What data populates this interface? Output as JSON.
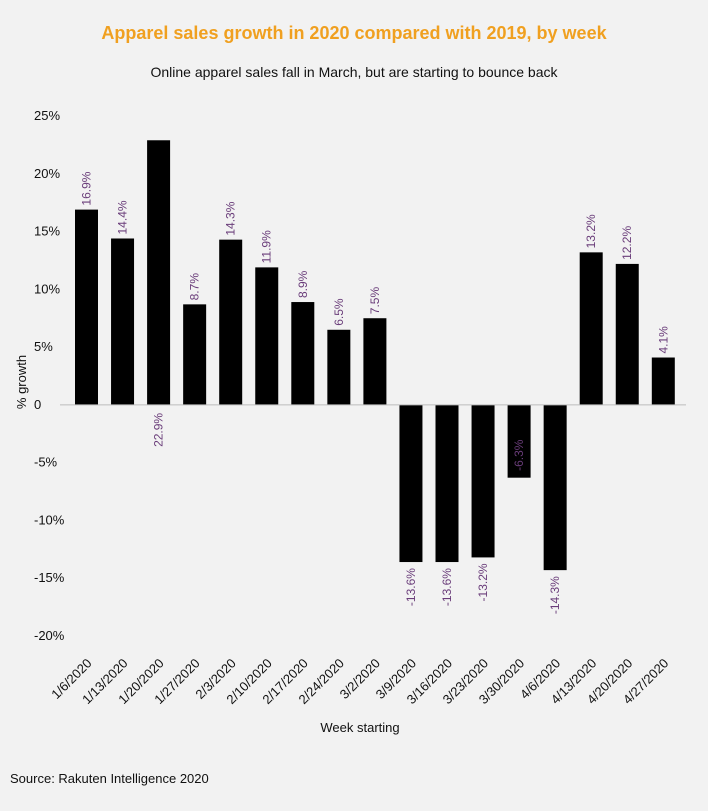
{
  "chart_data": {
    "type": "bar",
    "title": "Apparel sales growth in 2020 compared with 2019, by week",
    "subtitle": "Online apparel sales fall in March, but are starting to bounce back",
    "xlabel": "Week starting",
    "ylabel": "% growth",
    "source": "Source: Rakuten Intelligence 2020",
    "ylim": [
      -20,
      25
    ],
    "yticks": [
      25,
      20,
      15,
      10,
      5,
      0,
      -5,
      -10,
      -15,
      -20
    ],
    "ytick_labels": [
      "25%",
      "20%",
      "15%",
      "10%",
      "5%",
      "0",
      "-5%",
      "-10%",
      "-15%",
      "-20%"
    ],
    "categories": [
      "1/6/2020",
      "1/13/2020",
      "1/20/2020",
      "1/27/2020",
      "2/3/2020",
      "2/10/2020",
      "2/17/2020",
      "2/24/2020",
      "3/2/2020",
      "3/9/2020",
      "3/16/2020",
      "3/23/2020",
      "3/30/2020",
      "4/6/2020",
      "4/13/2020",
      "4/20/2020",
      "4/27/2020"
    ],
    "values": [
      16.9,
      14.4,
      22.9,
      8.7,
      14.3,
      11.9,
      8.9,
      6.5,
      7.5,
      -13.6,
      -13.6,
      -13.2,
      -6.3,
      -14.3,
      13.2,
      12.2,
      4.1
    ],
    "data_labels": [
      "16.9%",
      "14.4%",
      "22.9%",
      "8.7%",
      "14.3%",
      "11.9%",
      "8.9%",
      "6.5%",
      "7.5%",
      "-13.6%",
      "-13.6%",
      "-13.2%",
      "-6.3%",
      "-14.3%",
      "13.2%",
      "12.2%",
      "4.1%"
    ],
    "grid": false,
    "legend": "none",
    "colors": {
      "bar": "#000000",
      "title": "#f0a020",
      "data_label": "#6a3d7a",
      "axis_line": "#bbbbbb",
      "text": "#111111"
    }
  }
}
